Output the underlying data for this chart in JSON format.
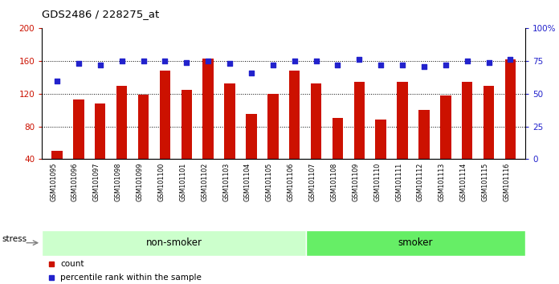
{
  "title": "GDS2486 / 228275_at",
  "samples": [
    "GSM101095",
    "GSM101096",
    "GSM101097",
    "GSM101098",
    "GSM101099",
    "GSM101100",
    "GSM101101",
    "GSM101102",
    "GSM101103",
    "GSM101104",
    "GSM101105",
    "GSM101106",
    "GSM101107",
    "GSM101108",
    "GSM101109",
    "GSM101110",
    "GSM101111",
    "GSM101112",
    "GSM101113",
    "GSM101114",
    "GSM101115",
    "GSM101116"
  ],
  "counts": [
    50,
    113,
    108,
    130,
    119,
    148,
    125,
    163,
    133,
    95,
    120,
    148,
    133,
    90,
    135,
    88,
    135,
    100,
    118,
    135,
    130,
    162
  ],
  "percentile_ranks": [
    60,
    73,
    72,
    75,
    75,
    75,
    74,
    75,
    73,
    66,
    72,
    75,
    75,
    72,
    76,
    72,
    72,
    71,
    72,
    75,
    74,
    76
  ],
  "bar_color": "#cc1100",
  "dot_color": "#2222cc",
  "left_ylim": [
    40,
    200
  ],
  "left_yticks": [
    40,
    80,
    120,
    160,
    200
  ],
  "right_ylim": [
    0,
    100
  ],
  "right_yticks": [
    0,
    25,
    50,
    75,
    100
  ],
  "right_yticklabels": [
    "0",
    "25",
    "50",
    "75",
    "100%"
  ],
  "non_smoker_count": 12,
  "smoker_count": 10,
  "group_labels": [
    "non-smoker",
    "smoker"
  ],
  "group_colors": [
    "#ccffcc",
    "#66ee66"
  ],
  "stress_label": "stress",
  "legend_items": [
    {
      "color": "#cc1100",
      "label": "count"
    },
    {
      "color": "#2222cc",
      "label": "percentile rank within the sample"
    }
  ],
  "grid_color": "black",
  "plot_bg_color": "#ffffff",
  "xticklabel_bg": "#d8d8d8"
}
